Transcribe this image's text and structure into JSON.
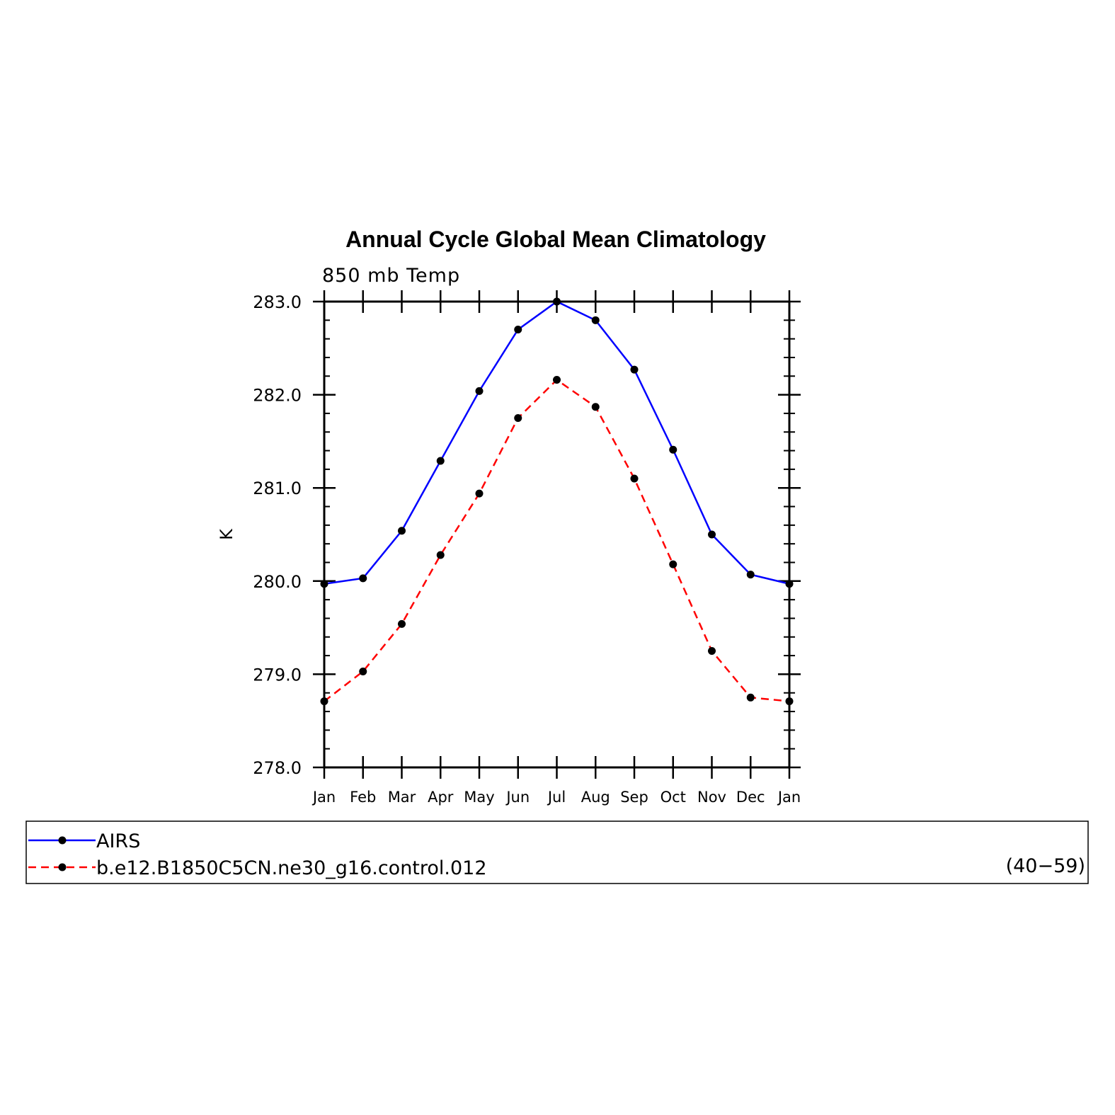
{
  "chart_data": {
    "type": "line",
    "title": "Annual Cycle Global Mean Climatology",
    "subtitle": "850 mb Temp",
    "ylabel": "K",
    "xlabel": "",
    "ylim": [
      278.0,
      283.0
    ],
    "yticks": [
      "278.0",
      "279.0",
      "280.0",
      "281.0",
      "282.0",
      "283.0"
    ],
    "categories": [
      "Jan",
      "Feb",
      "Mar",
      "Apr",
      "May",
      "Jun",
      "Jul",
      "Aug",
      "Sep",
      "Oct",
      "Nov",
      "Dec",
      "Jan"
    ],
    "series": [
      {
        "name": "AIRS",
        "color": "#0000ff",
        "dash": "solid",
        "values": [
          279.97,
          280.03,
          280.54,
          281.29,
          282.04,
          282.7,
          283.0,
          282.8,
          282.27,
          281.41,
          280.5,
          280.07,
          279.97
        ]
      },
      {
        "name": "b.e12.B1850C5CN.ne30_g16.control.012",
        "color": "#ff0000",
        "dash": "dashed",
        "values": [
          278.71,
          279.03,
          279.54,
          280.28,
          280.94,
          281.75,
          282.16,
          281.87,
          281.1,
          280.18,
          279.25,
          278.75,
          278.71
        ]
      }
    ],
    "legend": {
      "placement": "bottom",
      "note": "(40−59)"
    },
    "grid": false
  }
}
